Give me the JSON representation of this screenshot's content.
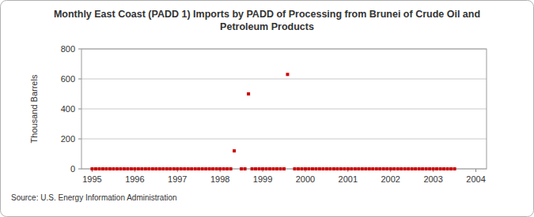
{
  "chart_data": {
    "type": "scatter",
    "title": "Monthly East Coast (PADD 1) Imports by PADD of Processing from Brunei of Crude Oil and Petroleum Products",
    "y_label": "Thousand Barrels",
    "source": "Source: U.S. Energy Information Administration",
    "color": "#cc0000",
    "marker": "square",
    "grid": true,
    "xlim": [
      1994.75,
      2004.25
    ],
    "xticks": [
      1995,
      1996,
      1997,
      1998,
      1999,
      2000,
      2001,
      2002,
      2003,
      2004
    ],
    "ylim": [
      0,
      800
    ],
    "yticks": [
      0,
      200,
      400,
      600,
      800
    ],
    "x": [
      1995,
      1995.083,
      1995.167,
      1995.25,
      1995.333,
      1995.417,
      1995.5,
      1995.583,
      1995.667,
      1995.75,
      1995.833,
      1995.917,
      1996,
      1996.083,
      1996.167,
      1996.25,
      1996.333,
      1996.417,
      1996.5,
      1996.583,
      1996.667,
      1996.75,
      1996.833,
      1996.917,
      1997,
      1997.083,
      1997.167,
      1997.25,
      1997.333,
      1997.417,
      1997.5,
      1997.583,
      1997.667,
      1997.75,
      1997.833,
      1997.917,
      1998,
      1998.083,
      1998.167,
      1998.25,
      1998.333,
      1998.417,
      1998.5,
      1998.583,
      1998.667,
      1998.75,
      1998.833,
      1998.917,
      1999,
      1999.083,
      1999.167,
      1999.25,
      1999.333,
      1999.417,
      1999.5,
      1999.583,
      1999.667,
      1999.75,
      1999.833,
      1999.917,
      2000,
      2000.083,
      2000.167,
      2000.25,
      2000.333,
      2000.417,
      2000.5,
      2000.583,
      2000.667,
      2000.75,
      2000.833,
      2000.917,
      2001,
      2001.083,
      2001.167,
      2001.25,
      2001.333,
      2001.417,
      2001.5,
      2001.583,
      2001.667,
      2001.75,
      2001.833,
      2001.917,
      2002,
      2002.083,
      2002.167,
      2002.25,
      2002.333,
      2002.417,
      2002.5,
      2002.583,
      2002.667,
      2002.75,
      2002.833,
      2002.917,
      2003,
      2003.083,
      2003.167,
      2003.25,
      2003.333,
      2003.417,
      2003.5
    ],
    "values": [
      0,
      0,
      0,
      0,
      0,
      0,
      0,
      0,
      0,
      0,
      0,
      0,
      0,
      0,
      0,
      0,
      0,
      0,
      0,
      0,
      0,
      0,
      0,
      0,
      0,
      0,
      0,
      0,
      0,
      0,
      0,
      0,
      0,
      0,
      0,
      0,
      0,
      0,
      0,
      0,
      120,
      null,
      0,
      0,
      500,
      0,
      0,
      0,
      0,
      0,
      0,
      0,
      0,
      0,
      0,
      630,
      null,
      0,
      0,
      0,
      0,
      0,
      0,
      0,
      0,
      0,
      0,
      0,
      0,
      0,
      0,
      0,
      0,
      0,
      0,
      0,
      0,
      0,
      0,
      0,
      0,
      0,
      0,
      0,
      0,
      0,
      0,
      0,
      0,
      0,
      0,
      0,
      0,
      0,
      0,
      0,
      0,
      0,
      0,
      0,
      0,
      0,
      0
    ]
  }
}
